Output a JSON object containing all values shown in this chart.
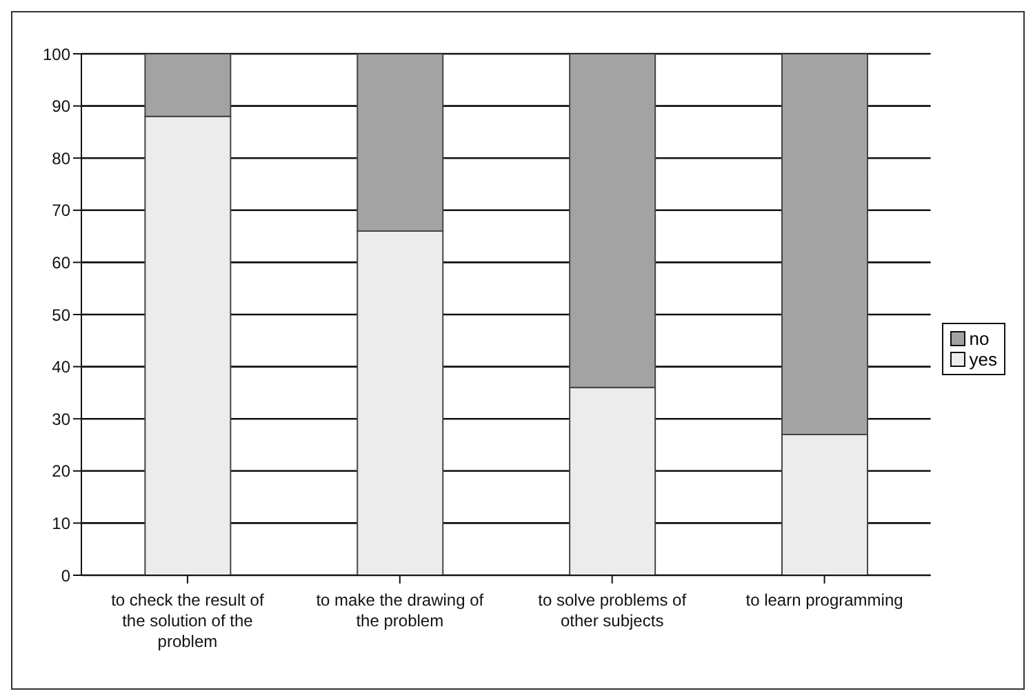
{
  "chart_data": {
    "type": "bar",
    "stacked": true,
    "categories": [
      "to check the result of the solution of the problem",
      "to make the drawing of the problem",
      "to solve problems of other subjects",
      "to learn programming"
    ],
    "series": [
      {
        "name": "yes",
        "color": "#ececec",
        "values": [
          88,
          66,
          36,
          27
        ]
      },
      {
        "name": "no",
        "color": "#a3a3a3",
        "values": [
          12,
          34,
          64,
          73
        ]
      }
    ],
    "ylim": [
      0,
      100
    ],
    "yticks": [
      0,
      10,
      20,
      30,
      40,
      50,
      60,
      70,
      80,
      90,
      100
    ],
    "grid": "y",
    "legend": "right"
  }
}
